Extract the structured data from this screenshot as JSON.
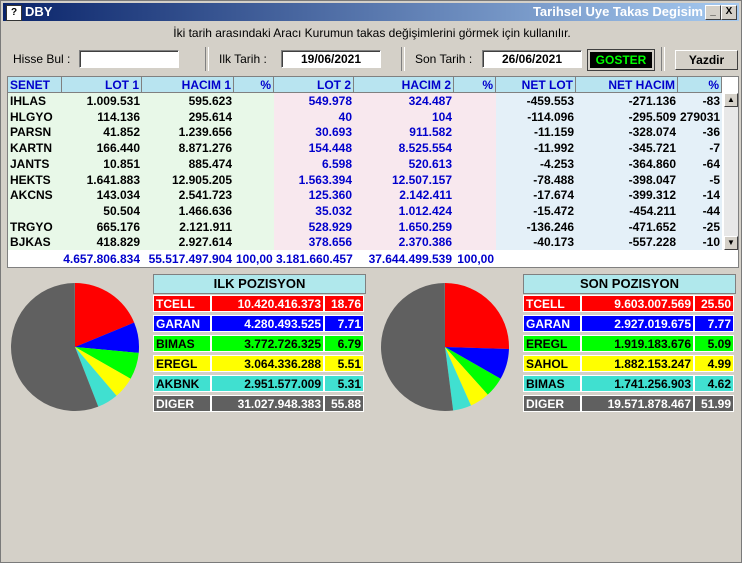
{
  "window": {
    "title": "DBY",
    "caption": "Tarihsel Uye Takas Degisim",
    "icon": "?",
    "min": "_",
    "close": "X"
  },
  "info": "İki tarih arasındaki  Aracı Kurumun takas değişimlerini görmek için kullanılır.",
  "controls": {
    "hisse_label": "Hisse Bul :",
    "hisse_value": "",
    "ilk_label": "Ilk Tarih :",
    "ilk_value": "19/06/2021",
    "son_label": "Son Tarih :",
    "son_value": "26/06/2021",
    "goster": "GOSTER",
    "yazdir": "Yazdir"
  },
  "table": {
    "headers": [
      "SENET",
      "LOT 1",
      "HACIM 1",
      "%",
      "LOT 2",
      "HACIM 2",
      "%",
      "NET LOT",
      "NET HACIM",
      "%"
    ],
    "rows": [
      [
        "IHLAS",
        "1.009.531",
        "595.623",
        "",
        "549.978",
        "324.487",
        "",
        "-459.553",
        "-271.136",
        "-83"
      ],
      [
        "HLGYO",
        "114.136",
        "295.614",
        "",
        "40",
        "104",
        "",
        "-114.096",
        "-295.509",
        "279031"
      ],
      [
        "PARSN",
        "41.852",
        "1.239.656",
        "",
        "30.693",
        "911.582",
        "",
        "-11.159",
        "-328.074",
        "-36"
      ],
      [
        "KARTN",
        "166.440",
        "8.871.276",
        "",
        "154.448",
        "8.525.554",
        "",
        "-11.992",
        "-345.721",
        "-7"
      ],
      [
        "JANTS",
        "10.851",
        "885.474",
        "",
        "6.598",
        "520.613",
        "",
        "-4.253",
        "-364.860",
        "-64"
      ],
      [
        "HEKTS",
        "1.641.883",
        "12.905.205",
        "",
        "1.563.394",
        "12.507.157",
        "",
        "-78.488",
        "-398.047",
        "-5"
      ],
      [
        "AKCNS",
        "143.034",
        "2.541.723",
        "",
        "125.360",
        "2.142.411",
        "",
        "-17.674",
        "-399.312",
        "-14"
      ],
      [
        "",
        "50.504",
        "1.466.636",
        "",
        "35.032",
        "1.012.424",
        "",
        "-15.472",
        "-454.211",
        "-44"
      ],
      [
        "TRGYO",
        "665.176",
        "2.121.911",
        "",
        "528.929",
        "1.650.259",
        "",
        "-136.246",
        "-471.652",
        "-25"
      ],
      [
        "BJKAS",
        "418.829",
        "2.927.614",
        "",
        "378.656",
        "2.370.386",
        "",
        "-40.173",
        "-557.228",
        "-10"
      ]
    ],
    "totals": [
      "4.657.806.834",
      "55.517.497.904",
      "100,00",
      "3.181.660.457",
      "37.644.499.539",
      "100,00"
    ]
  },
  "ilk_pozisyon": {
    "title": "ILK POZISYON",
    "items": [
      {
        "name": "TCELL",
        "value": "10.420.416.373",
        "pct": "18.76",
        "color": "#ff0000",
        "text": "#ffffff"
      },
      {
        "name": "GARAN",
        "value": "4.280.493.525",
        "pct": "7.71",
        "color": "#0000ff",
        "text": "#ffffff"
      },
      {
        "name": "BIMAS",
        "value": "3.772.726.325",
        "pct": "6.79",
        "color": "#00ff00",
        "text": "#000000"
      },
      {
        "name": "EREGL",
        "value": "3.064.336.288",
        "pct": "5.51",
        "color": "#ffff00",
        "text": "#000000"
      },
      {
        "name": "AKBNK",
        "value": "2.951.577.009",
        "pct": "5.31",
        "color": "#40e0d0",
        "text": "#000000"
      },
      {
        "name": "DIGER",
        "value": "31.027.948.383",
        "pct": "55.88",
        "color": "#606060",
        "text": "#ffffff"
      }
    ]
  },
  "son_pozisyon": {
    "title": "SON POZISYON",
    "items": [
      {
        "name": "TCELL",
        "value": "9.603.007.569",
        "pct": "25.50",
        "color": "#ff0000",
        "text": "#ffffff"
      },
      {
        "name": "GARAN",
        "value": "2.927.019.675",
        "pct": "7.77",
        "color": "#0000ff",
        "text": "#ffffff"
      },
      {
        "name": "EREGL",
        "value": "1.919.183.676",
        "pct": "5.09",
        "color": "#00ff00",
        "text": "#000000"
      },
      {
        "name": "SAHOL",
        "value": "1.882.153.247",
        "pct": "4.99",
        "color": "#ffff00",
        "text": "#000000"
      },
      {
        "name": "BIMAS",
        "value": "1.741.256.903",
        "pct": "4.62",
        "color": "#40e0d0",
        "text": "#000000"
      },
      {
        "name": "DIGER",
        "value": "19.571.878.467",
        "pct": "51.99",
        "color": "#606060",
        "text": "#ffffff"
      }
    ]
  }
}
